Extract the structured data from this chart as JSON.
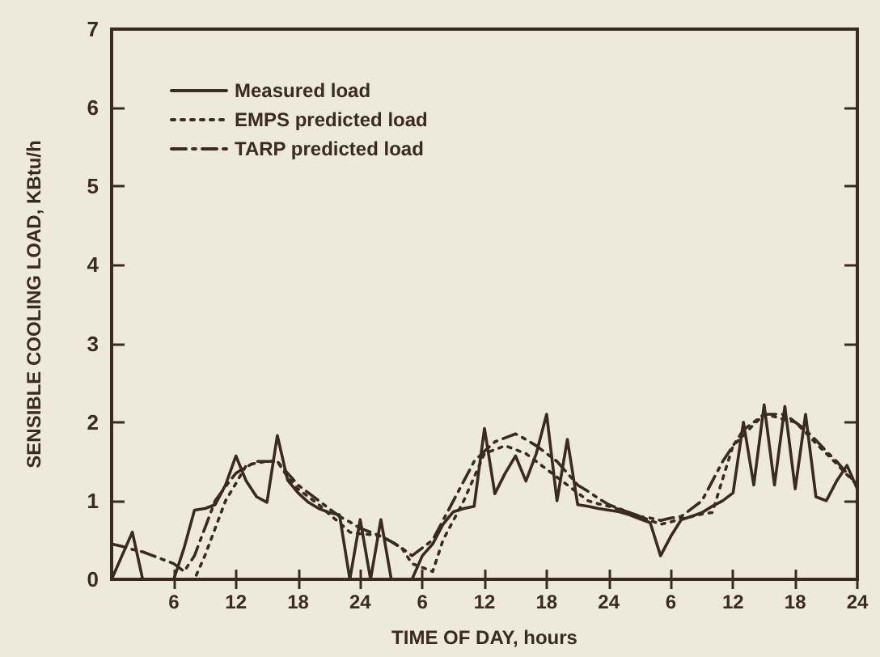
{
  "chart_data": {
    "type": "line",
    "xlabel": "TIME OF DAY, hours",
    "ylabel": "SENSIBLE COOLING LOAD, KBtu/h",
    "categories": [
      null,
      null,
      null,
      null,
      null,
      null,
      "6",
      null,
      null,
      null,
      null,
      null,
      "12",
      null,
      null,
      null,
      null,
      null,
      "18",
      null,
      null,
      null,
      null,
      null,
      "24",
      null,
      null,
      null,
      null,
      null,
      "6",
      null,
      null,
      null,
      null,
      null,
      "12",
      null,
      null,
      null,
      null,
      null,
      "18",
      null,
      null,
      null,
      null,
      null,
      "24",
      null,
      null,
      null,
      null,
      null,
      "6",
      null,
      null,
      null,
      null,
      null,
      "12",
      null,
      null,
      null,
      null,
      null,
      "18",
      null,
      null,
      null,
      null,
      null,
      "24"
    ],
    "ylim": [
      0,
      7
    ],
    "yticks": [
      0,
      1,
      2,
      3,
      4,
      5,
      6,
      7
    ],
    "grid": false,
    "legend": "top left",
    "marker": "none",
    "series": [
      {
        "name": "Measured load",
        "color": "#3a2a20",
        "line_style": "solid",
        "values": [
          0,
          0.3,
          0.6,
          0,
          0,
          0,
          0,
          0.4,
          0.88,
          0.9,
          0.95,
          1.2,
          1.57,
          1.25,
          1.05,
          0.98,
          1.83,
          1.26,
          1.1,
          0.98,
          0.9,
          0.85,
          0.82,
          0,
          0.76,
          0,
          0.76,
          0,
          0,
          0,
          0.3,
          0.45,
          0.7,
          0.86,
          0.9,
          0.93,
          1.92,
          1.09,
          1.35,
          1.57,
          1.25,
          1.6,
          2.1,
          1.0,
          1.78,
          0.95,
          0.93,
          0.9,
          0.88,
          0.86,
          0.82,
          0.77,
          0.72,
          0.3,
          0.55,
          0.76,
          0.8,
          0.85,
          0.93,
          1.0,
          1.1,
          2.0,
          1.2,
          2.22,
          1.2,
          2.2,
          1.15,
          2.1,
          1.05,
          1.0,
          1.25,
          1.45,
          1.15
        ]
      },
      {
        "name": "EMPS predicted load",
        "color": "#3a2a20",
        "line_style": "dotted",
        "values": [
          0,
          0,
          0,
          0,
          0,
          0,
          0,
          0,
          0,
          0.3,
          0.65,
          1.0,
          1.22,
          1.45,
          1.48,
          1.5,
          1.5,
          1.3,
          1.15,
          1.05,
          0.95,
          0.83,
          0.72,
          0.6,
          0.58,
          0.57,
          0.55,
          0.48,
          0.4,
          0.2,
          0.15,
          0.1,
          0.5,
          0.75,
          1.0,
          1.3,
          1.6,
          1.65,
          1.7,
          1.65,
          1.6,
          1.5,
          1.4,
          1.3,
          1.2,
          1.1,
          1.0,
          0.96,
          0.93,
          0.89,
          0.85,
          0.8,
          0.75,
          0.7,
          0.73,
          0.77,
          0.8,
          0.83,
          0.85,
          1.28,
          1.7,
          1.83,
          1.97,
          2.1,
          2.07,
          2.03,
          2.0,
          1.87,
          1.73,
          1.6,
          1.47,
          1.33,
          1.2
        ]
      },
      {
        "name": "TARP predicted load",
        "color": "#3a2a20",
        "line_style": "dashdot",
        "values": [
          0.45,
          0.42,
          0.38,
          0.35,
          0.3,
          0.25,
          0.2,
          0.1,
          0.3,
          0.65,
          1.0,
          1.18,
          1.35,
          1.43,
          1.5,
          1.5,
          1.5,
          1.35,
          1.2,
          1.1,
          1.0,
          0.9,
          0.8,
          0.73,
          0.65,
          0.6,
          0.55,
          0.48,
          0.4,
          0.3,
          0.4,
          0.5,
          0.75,
          1.0,
          1.25,
          1.5,
          1.63,
          1.75,
          1.8,
          1.85,
          1.78,
          1.7,
          1.6,
          1.5,
          1.35,
          1.2,
          1.12,
          1.03,
          0.95,
          0.9,
          0.85,
          0.8,
          0.78,
          0.75,
          0.78,
          0.8,
          0.9,
          1.0,
          1.25,
          1.5,
          1.7,
          1.9,
          2.0,
          2.1,
          2.1,
          2.1,
          2.0,
          1.9,
          1.77,
          1.63,
          1.5,
          1.35,
          1.2
        ]
      }
    ]
  }
}
